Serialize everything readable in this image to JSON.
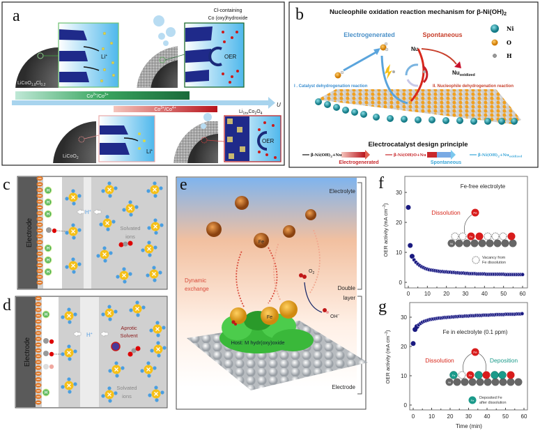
{
  "colors": {
    "ni": "#2aa6b4",
    "o": "#f0a020",
    "h": "#9a9a9a",
    "accent_red": "#d6342b",
    "accent_blue": "#3a8ed0",
    "marker": "#1a1a80",
    "fe": "#d81c1c",
    "deposited_fe": "#1a9a8a"
  },
  "panel_a": {
    "label": "a",
    "material_top": {
      "p1": "LiCoO",
      "s1": "1.8",
      "p2": "Cl",
      "s2": "0.2"
    },
    "li_ion": {
      "p1": "Li",
      "s1": "+"
    },
    "shell_title_1": "Cl-containing",
    "shell_title_2": "Co (oxy)hydroxide",
    "oer": "OER",
    "bar_green": {
      "p1": "Co",
      "s1": "2+",
      "p2": "/Co",
      "s2": "3+"
    },
    "bar_red": {
      "p1": "Co",
      "s1": "3+",
      "p2": "/Co",
      "s2": "4+"
    },
    "axis": "U",
    "material_bottom": {
      "p1": "LiCoO",
      "s1": "2"
    },
    "spinel": {
      "p1": "Li",
      "s1": "1±x",
      "p2": "Co",
      "s2": "2",
      "p3": "O",
      "s3": "4"
    }
  },
  "panel_b": {
    "label": "b",
    "title": {
      "p1": "Nucleophile oxidation reaction mechanism for β-Ni(OH)",
      "s1": "2"
    },
    "electrogenerated": "Electrogenerated",
    "spontaneous": "Spontaneous",
    "nu": "Nu",
    "nu_oxidized": {
      "p1": "Nu",
      "s1": "oxidized"
    },
    "legend": [
      {
        "label": "Ni"
      },
      {
        "label": "O"
      },
      {
        "label": "H"
      }
    ],
    "reaction_1": "I . Catalyst dehydrogenation reaction",
    "reaction_2": "II. Nucleophile dehydrogenation reaction",
    "design_title": "Electrocatalyst design principle",
    "design_row": {
      "state1": {
        "p1": "β-Ni(OH)",
        "s1": "2",
        "p2": "+Nu"
      },
      "state2": "β-Ni(OH)O+Nu",
      "state3": {
        "p1": "β-Ni(OH)",
        "s1": "2",
        "p2": "+Nu",
        "s2": "oxidized"
      },
      "step1": "Electrogenerated",
      "step2": "Spontaneous"
    }
  },
  "panel_c": {
    "label": "c",
    "electrode": "Electrode",
    "h": "H",
    "h_plus": {
      "p1": "H",
      "s1": "+"
    },
    "solvated_1": "Solvated",
    "solvated_2": "ions"
  },
  "panel_d": {
    "label": "d",
    "electrode": "Electrode",
    "h": "H",
    "h_plus": {
      "p1": "H",
      "s1": "+"
    },
    "aprotic_1": "Aprotic",
    "aprotic_2": "Solvent",
    "solvated_1": "Solvated",
    "solvated_2": "ions"
  },
  "panel_e": {
    "label": "e",
    "electrolyte": "Electrolyte",
    "double_1": "Double",
    "double_2": "layer",
    "electrode": "Electrode",
    "fe": "Fe",
    "dynamic_1": "Dynamic",
    "dynamic_2": "exchange",
    "o2": {
      "p1": "O",
      "s1": "2"
    },
    "oh": {
      "p1": "OH",
      "s1": "−"
    },
    "host": "Host: M hydr(oxy)oxide"
  },
  "panel_f": {
    "label": "f",
    "condition": "Fe-free electrolyte",
    "dissolution": "Dissolution",
    "fe": "Fe",
    "ni": "Ni",
    "vacancy_1": "Vacancy from",
    "vacancy_2": "Fe dissolution"
  },
  "panel_g": {
    "label": "g",
    "condition": "Fe in electrolyte (0.1 ppm)",
    "dissolution": "Dissolution",
    "deposition": "Deposition",
    "fe": "Fe",
    "ni": "Ni",
    "deposited_1": "Deposited Fe",
    "deposited_2": "after dissolution"
  },
  "chart_data": [
    {
      "type": "scatter",
      "panel": "f",
      "xlabel": "",
      "ylabel": "OER activity (mA cm−2)",
      "ylabel_parts": {
        "p1": "OER activity (mA cm",
        "s1": "−2",
        "p2": ")"
      },
      "xlim": [
        -1,
        62
      ],
      "ylim": [
        -1,
        35
      ],
      "xticks": [
        0,
        10,
        20,
        30,
        40,
        50,
        60
      ],
      "yticks": [
        0,
        10,
        20,
        30
      ],
      "x": [
        0,
        1,
        2,
        3,
        4,
        5,
        6,
        7,
        8,
        9,
        10,
        11,
        12,
        13,
        14,
        15,
        16,
        17,
        18,
        19,
        20,
        21,
        22,
        23,
        24,
        25,
        26,
        27,
        28,
        29,
        30,
        31,
        32,
        33,
        34,
        35,
        36,
        37,
        38,
        39,
        40,
        41,
        42,
        43,
        44,
        45,
        46,
        47,
        48,
        49,
        50,
        51,
        52,
        53,
        54,
        55,
        56,
        57,
        58,
        59,
        60
      ],
      "y": [
        25,
        12.3,
        8.7,
        7.5,
        6.7,
        6.1,
        5.6,
        5.2,
        4.9,
        4.6,
        4.4,
        4.2,
        4.1,
        4.0,
        3.9,
        3.8,
        3.7,
        3.6,
        3.6,
        3.5,
        3.5,
        3.4,
        3.4,
        3.3,
        3.3,
        3.2,
        3.2,
        3.1,
        3.1,
        3.1,
        3.0,
        3.0,
        2.9,
        2.9,
        2.9,
        2.9,
        2.8,
        2.8,
        2.8,
        2.8,
        2.8,
        2.7,
        2.7,
        2.7,
        2.7,
        2.7,
        2.7,
        2.7,
        2.7,
        2.7,
        2.7,
        2.6,
        2.6,
        2.6,
        2.6,
        2.6,
        2.6,
        2.6,
        2.6,
        2.6,
        2.6
      ]
    },
    {
      "type": "scatter",
      "panel": "g",
      "xlabel": "Time (min)",
      "ylabel": "OER activity (mA cm−2)",
      "ylabel_parts": {
        "p1": "OER activity (mA cm",
        "s1": "−2",
        "p2": ")"
      },
      "xlim": [
        -2,
        62
      ],
      "ylim": [
        -1.5,
        34
      ],
      "xticks": [
        0,
        10,
        20,
        30,
        40,
        50,
        60
      ],
      "yticks": [
        0,
        10,
        20,
        30
      ],
      "x": [
        0,
        1,
        2,
        3,
        4,
        5,
        6,
        7,
        8,
        9,
        10,
        11,
        12,
        13,
        14,
        15,
        16,
        17,
        18,
        19,
        20,
        21,
        22,
        23,
        24,
        25,
        26,
        27,
        28,
        29,
        30,
        31,
        32,
        33,
        34,
        35,
        36,
        37,
        38,
        39,
        40,
        41,
        42,
        43,
        44,
        45,
        46,
        47,
        48,
        49,
        50,
        51,
        52,
        53,
        54,
        55,
        56,
        57,
        58,
        59
      ],
      "y": [
        21,
        25.8,
        26.8,
        27.4,
        27.9,
        28.3,
        28.6,
        28.8,
        29.0,
        29.2,
        29.3,
        29.4,
        29.5,
        29.6,
        29.7,
        29.7,
        29.8,
        29.9,
        29.9,
        30.0,
        30.0,
        30.1,
        30.1,
        30.2,
        30.2,
        30.3,
        30.3,
        30.3,
        30.4,
        30.4,
        30.4,
        30.5,
        30.5,
        30.5,
        30.6,
        30.6,
        30.6,
        30.6,
        30.7,
        30.7,
        30.7,
        30.7,
        30.8,
        30.8,
        30.8,
        30.9,
        30.9,
        30.9,
        30.9,
        30.9,
        31.0,
        31.0,
        31.0,
        31.0,
        31.0,
        31.0,
        31.1,
        31.1,
        31.1,
        31.2
      ]
    }
  ]
}
